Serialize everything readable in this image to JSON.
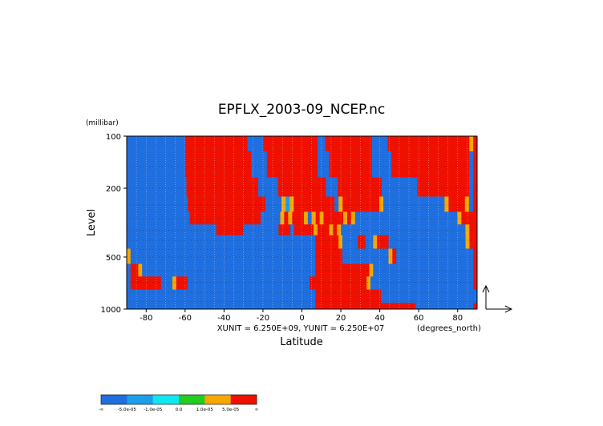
{
  "chart_data": {
    "type": "heatmap",
    "title": "EPFLX_2003-09_NCEP.nc",
    "xlabel": "Latitude",
    "ylabel": "Level",
    "x_units": "(degrees_north)",
    "y_units": "(millibar)",
    "xlim": [
      -90,
      90
    ],
    "ylim": [
      1000,
      100
    ],
    "y_scale": "log",
    "x_ticks": [
      -80,
      -60,
      -40,
      -20,
      0,
      20,
      40,
      60,
      80
    ],
    "x_tick_labels": [
      "-80",
      "-60",
      "-40",
      "-20",
      "0",
      "20",
      "40",
      "60",
      "80"
    ],
    "y_ticks": [
      100,
      200,
      500,
      1000
    ],
    "y_tick_labels": [
      "100",
      "200",
      "500",
      "1000"
    ],
    "vector_scale_text": "XUNIT = 6.250E+09, YUNIT = 6.250E+07",
    "grid": true,
    "colorbar": {
      "orientation": "horizontal",
      "placement": "bottom-left",
      "boundaries": [
        "-∞",
        "-5.0e-05",
        "-1.0e-05",
        "0.0",
        "1.0e-05",
        "5.0e-05",
        "∞"
      ],
      "colors": [
        "#1f6fe0",
        "#1c9ee8",
        "#10e6f0",
        "#22cc22",
        "#f5a800",
        "#f01000"
      ]
    },
    "rows": [
      {
        "level": 100,
        "values": [
          -1,
          -1,
          -1,
          -1,
          -1,
          -1,
          -1,
          -1,
          -1,
          -1,
          -1,
          -1,
          -1,
          -1,
          -1,
          3,
          3,
          3,
          3,
          3,
          3,
          3,
          3,
          3,
          3,
          3,
          3,
          3,
          3,
          3,
          3,
          -1,
          -1,
          -1,
          -1,
          3,
          3,
          3,
          3,
          3,
          3,
          3,
          3,
          3,
          3,
          3,
          3,
          3,
          3,
          -1,
          -1,
          3,
          3,
          3,
          3,
          3,
          3,
          3,
          3,
          3,
          3,
          3,
          3,
          -1,
          -1,
          -1,
          -1,
          3,
          3,
          3,
          3,
          3,
          3,
          3,
          3,
          3,
          3,
          3,
          3,
          3,
          3,
          3,
          3,
          3,
          3,
          3,
          3,
          3,
          2,
          3
        ]
      },
      {
        "level": 150,
        "values": [
          -1,
          -1,
          -1,
          -1,
          -1,
          -1,
          -1,
          -1,
          -1,
          -1,
          -1,
          -1,
          -1,
          -1,
          -1,
          3,
          3,
          3,
          3,
          3,
          3,
          3,
          3,
          3,
          3,
          3,
          3,
          3,
          3,
          3,
          3,
          3,
          -1,
          -1,
          -1,
          -1,
          3,
          3,
          3,
          3,
          3,
          3,
          3,
          3,
          3,
          3,
          3,
          3,
          3,
          -1,
          -1,
          -1,
          3,
          3,
          3,
          3,
          3,
          3,
          3,
          3,
          3,
          3,
          3,
          -1,
          -1,
          -1,
          -1,
          -1,
          3,
          3,
          3,
          3,
          3,
          3,
          3,
          3,
          3,
          3,
          3,
          3,
          3,
          3,
          3,
          3,
          3,
          3,
          3,
          3,
          -1,
          3
        ]
      },
      {
        "level": 200,
        "values": [
          -1,
          -1,
          -1,
          -1,
          -1,
          -1,
          -1,
          -1,
          -1,
          -1,
          -1,
          -1,
          -1,
          -1,
          -1,
          3,
          3,
          3,
          3,
          3,
          3,
          3,
          3,
          3,
          3,
          3,
          3,
          3,
          3,
          3,
          3,
          3,
          3,
          -1,
          -1,
          -1,
          -1,
          -1,
          3,
          3,
          3,
          3,
          3,
          3,
          3,
          3,
          3,
          3,
          3,
          3,
          -1,
          -1,
          -1,
          3,
          3,
          3,
          3,
          3,
          3,
          3,
          3,
          3,
          3,
          3,
          -1,
          -1,
          -1,
          -1,
          -1,
          -1,
          -1,
          -1,
          -1,
          3,
          3,
          3,
          3,
          3,
          3,
          3,
          3,
          3,
          3,
          3,
          3,
          3,
          -1,
          3
        ]
      },
      {
        "level": 250,
        "values": [
          -1,
          -1,
          -1,
          -1,
          -1,
          -1,
          -1,
          -1,
          -1,
          -1,
          -1,
          -1,
          -1,
          -1,
          -1,
          3,
          3,
          3,
          3,
          3,
          3,
          3,
          3,
          3,
          3,
          3,
          3,
          3,
          3,
          3,
          3,
          3,
          3,
          3,
          -1,
          -1,
          -1,
          -1,
          2,
          1,
          2,
          3,
          3,
          3,
          3,
          3,
          3,
          3,
          3,
          3,
          3,
          -1,
          2,
          3,
          3,
          3,
          3,
          3,
          3,
          3,
          3,
          3,
          2,
          -1,
          -1,
          -1,
          -1,
          -1,
          -1,
          -1,
          -1,
          -1,
          -1,
          -1,
          -1,
          -1,
          -1,
          -1,
          2,
          3,
          3,
          3,
          3,
          2,
          -1,
          3
        ]
      },
      {
        "level": 300,
        "values": [
          -1,
          -1,
          -1,
          -1,
          -1,
          -1,
          -1,
          -1,
          -1,
          -1,
          -1,
          -1,
          -1,
          -1,
          -1,
          -1,
          3,
          3,
          3,
          3,
          3,
          3,
          3,
          3,
          3,
          3,
          3,
          3,
          3,
          3,
          3,
          3,
          3,
          3,
          -1,
          -1,
          -1,
          -1,
          -1,
          2,
          3,
          2,
          3,
          3,
          3,
          2,
          -1,
          2,
          3,
          2,
          3,
          3,
          3,
          3,
          3,
          2,
          3,
          2,
          -1,
          -1,
          -1,
          -1,
          -1,
          -1,
          -1,
          -1,
          -1,
          -1,
          -1,
          -1,
          -1,
          -1,
          -1,
          -1,
          -1,
          -1,
          -1,
          -1,
          -1,
          -1,
          -1,
          -1,
          -1,
          -1,
          2,
          3,
          3,
          3,
          3
        ]
      },
      {
        "level": 350,
        "values": [
          -1,
          -1,
          -1,
          -1,
          -1,
          -1,
          -1,
          -1,
          -1,
          -1,
          -1,
          -1,
          -1,
          -1,
          -1,
          -1,
          -1,
          -1,
          -1,
          -1,
          -1,
          -1,
          -1,
          3,
          3,
          3,
          3,
          3,
          3,
          3,
          -1,
          -1,
          -1,
          -1,
          -1,
          -1,
          -1,
          -1,
          -1,
          3,
          3,
          3,
          -1,
          3,
          3,
          3,
          3,
          3,
          2,
          3,
          3,
          3,
          2,
          3,
          2,
          -1,
          -1,
          -1,
          -1,
          -1,
          -1,
          -1,
          -1,
          -1,
          -1,
          -1,
          -1,
          -1,
          -1,
          -1,
          -1,
          -1,
          -1,
          -1,
          -1,
          -1,
          -1,
          -1,
          -1,
          -1,
          -1,
          -1,
          -1,
          -1,
          -1,
          -1,
          -1,
          2,
          3,
          3
        ]
      },
      {
        "level": 400,
        "values": [
          -1,
          -1,
          -1,
          -1,
          -1,
          -1,
          -1,
          -1,
          -1,
          -1,
          -1,
          -1,
          -1,
          -1,
          -1,
          -1,
          -1,
          -1,
          -1,
          -1,
          -1,
          -1,
          -1,
          -1,
          -1,
          -1,
          -1,
          -1,
          -1,
          -1,
          -1,
          -1,
          -1,
          -1,
          -1,
          -1,
          -1,
          -1,
          -1,
          -1,
          -1,
          -1,
          -1,
          -1,
          -1,
          -1,
          -1,
          -1,
          -1,
          3,
          3,
          3,
          3,
          3,
          3,
          2,
          -1,
          -1,
          -1,
          -1,
          3,
          3,
          -1,
          -1,
          2,
          3,
          3,
          3,
          -1,
          -1,
          -1,
          -1,
          -1,
          -1,
          -1,
          -1,
          -1,
          -1,
          -1,
          -1,
          -1,
          -1,
          -1,
          -1,
          -1,
          -1,
          -1,
          -1,
          2,
          3,
          3
        ]
      },
      {
        "level": 500,
        "values": [
          2,
          -1,
          -1,
          -1,
          -1,
          -1,
          -1,
          -1,
          -1,
          -1,
          -1,
          -1,
          -1,
          -1,
          -1,
          -1,
          -1,
          -1,
          -1,
          -1,
          -1,
          -1,
          -1,
          -1,
          -1,
          -1,
          -1,
          -1,
          -1,
          -1,
          -1,
          -1,
          -1,
          -1,
          -1,
          -1,
          -1,
          -1,
          -1,
          -1,
          -1,
          -1,
          -1,
          -1,
          -1,
          -1,
          -1,
          -1,
          -1,
          3,
          3,
          3,
          3,
          3,
          3,
          3,
          -1,
          -1,
          -1,
          -1,
          -1,
          -1,
          -1,
          -1,
          -1,
          -1,
          -1,
          -1,
          2,
          3,
          -1,
          -1,
          -1,
          -1,
          -1,
          -1,
          -1,
          -1,
          -1,
          -1,
          -1,
          -1,
          -1,
          -1,
          -1,
          -1,
          -1,
          -1,
          -1,
          -1,
          3
        ]
      },
      {
        "level": 600,
        "values": [
          -1,
          3,
          3,
          2,
          -1,
          -1,
          -1,
          -1,
          -1,
          -1,
          -1,
          -1,
          -1,
          -1,
          -1,
          -1,
          -1,
          -1,
          -1,
          -1,
          -1,
          -1,
          -1,
          -1,
          -1,
          -1,
          -1,
          -1,
          -1,
          -1,
          -1,
          -1,
          -1,
          -1,
          -1,
          -1,
          -1,
          -1,
          -1,
          -1,
          -1,
          -1,
          -1,
          -1,
          -1,
          -1,
          -1,
          -1,
          -1,
          3,
          3,
          3,
          3,
          3,
          3,
          3,
          3,
          3,
          3,
          3,
          3,
          3,
          3,
          2,
          -1,
          -1,
          -1,
          -1,
          -1,
          -1,
          -1,
          -1,
          -1,
          -1,
          -1,
          -1,
          -1,
          -1,
          -1,
          -1,
          -1,
          -1,
          -1,
          -1,
          -1,
          -1,
          -1,
          -1,
          -1,
          -1,
          3
        ]
      },
      {
        "level": 700,
        "values": [
          -1,
          3,
          3,
          3,
          3,
          3,
          3,
          3,
          3,
          -1,
          -1,
          -1,
          2,
          3,
          3,
          3,
          -1,
          -1,
          -1,
          -1,
          -1,
          -1,
          -1,
          -1,
          -1,
          -1,
          -1,
          -1,
          -1,
          -1,
          -1,
          -1,
          -1,
          -1,
          -1,
          -1,
          -1,
          -1,
          -1,
          -1,
          -1,
          -1,
          -1,
          -1,
          -1,
          -1,
          -1,
          -1,
          3,
          3,
          3,
          3,
          3,
          3,
          3,
          3,
          3,
          3,
          3,
          3,
          3,
          3,
          3,
          2,
          -1,
          -1,
          -1,
          -1,
          -1,
          -1,
          -1,
          -1,
          -1,
          -1,
          -1,
          -1,
          -1,
          -1,
          -1,
          -1,
          -1,
          -1,
          -1,
          -1,
          -1,
          -1,
          -1,
          -1,
          -1,
          -1,
          -1,
          3
        ]
      },
      {
        "level": 850,
        "values": [
          -1,
          -1,
          -1,
          -1,
          -1,
          -1,
          -1,
          -1,
          -1,
          -1,
          -1,
          -1,
          -1,
          -1,
          -1,
          -1,
          -1,
          -1,
          -1,
          -1,
          -1,
          -1,
          -1,
          -1,
          -1,
          -1,
          -1,
          -1,
          -1,
          -1,
          -1,
          -1,
          -1,
          -1,
          -1,
          -1,
          -1,
          -1,
          -1,
          -1,
          -1,
          -1,
          -1,
          -1,
          -1,
          -1,
          -1,
          -1,
          -1,
          3,
          3,
          3,
          3,
          3,
          3,
          3,
          3,
          3,
          3,
          3,
          3,
          3,
          3,
          3,
          3,
          3,
          -1,
          -1,
          -1,
          -1,
          -1,
          -1,
          -1,
          -1,
          -1,
          -1,
          -1,
          -1,
          -1,
          -1,
          -1,
          -1,
          -1,
          -1,
          -1,
          -1,
          -1,
          -1,
          -1,
          -1,
          -1
        ]
      },
      {
        "level": 1000,
        "values": [
          -1,
          -1,
          -1,
          -1,
          -1,
          -1,
          -1,
          -1,
          -1,
          -1,
          -1,
          -1,
          -1,
          -1,
          -1,
          -1,
          -1,
          -1,
          -1,
          -1,
          -1,
          -1,
          -1,
          -1,
          -1,
          -1,
          -1,
          -1,
          -1,
          -1,
          -1,
          -1,
          -1,
          -1,
          -1,
          -1,
          -1,
          -1,
          -1,
          -1,
          -1,
          -1,
          -1,
          -1,
          -1,
          -1,
          -1,
          -1,
          -1,
          3,
          3,
          3,
          3,
          3,
          3,
          3,
          3,
          3,
          3,
          3,
          3,
          3,
          3,
          3,
          3,
          3,
          3,
          3,
          3,
          3,
          3,
          3,
          3,
          3,
          3,
          -1,
          -1,
          -1,
          -1,
          -1,
          -1,
          -1,
          -1,
          -1,
          -1,
          -1,
          -1,
          -1,
          -1,
          -1,
          3
        ]
      }
    ]
  }
}
